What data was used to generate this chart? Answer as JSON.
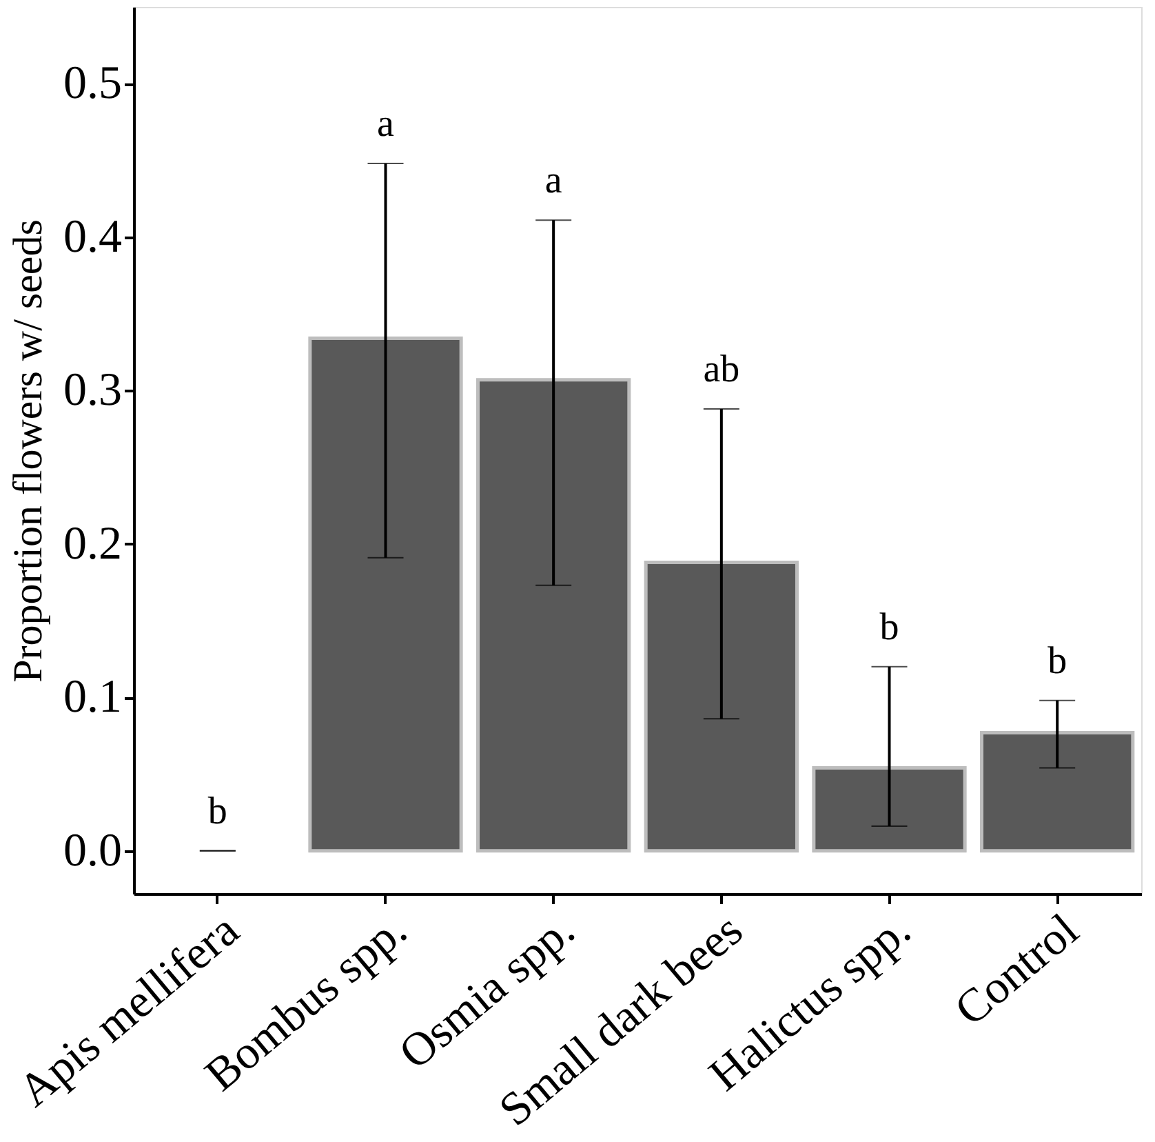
{
  "chart_data": {
    "type": "bar",
    "ylabel": "Proportion flowers w/ seeds",
    "categories": [
      "Apis mellifera",
      "Bombus spp.",
      "Osmia spp.",
      "Small dark bees",
      "Halictus spp.",
      "Control"
    ],
    "values": [
      0.0,
      0.334,
      0.307,
      0.188,
      0.054,
      0.077
    ],
    "errors": [
      [
        0.0,
        0.0
      ],
      [
        0.191,
        0.448
      ],
      [
        0.173,
        0.411
      ],
      [
        0.086,
        0.288
      ],
      [
        0.016,
        0.12
      ],
      [
        0.054,
        0.098
      ]
    ],
    "color": "#595959",
    "ylim": [
      -0.028,
      0.55
    ],
    "yticks": [
      {
        "value": 0,
        "label": "0.0"
      },
      0.1,
      0.2,
      0.3,
      0.4,
      0.5
    ],
    "grid": false,
    "annotations": [
      {
        "text": "b",
        "x": "Apis mellifera",
        "y": 0.0
      },
      {
        "text": "a",
        "x": "Bombus spp.",
        "y": 0.448
      },
      {
        "text": "a",
        "x": "Osmia spp.",
        "y": 0.411
      },
      {
        "text": "ab",
        "x": "Small dark bees",
        "y": 0.288
      },
      {
        "text": "b",
        "x": "Halictus spp.",
        "y": 0.12
      },
      {
        "text": "b",
        "x": "Control",
        "y": 0.098
      }
    ]
  }
}
